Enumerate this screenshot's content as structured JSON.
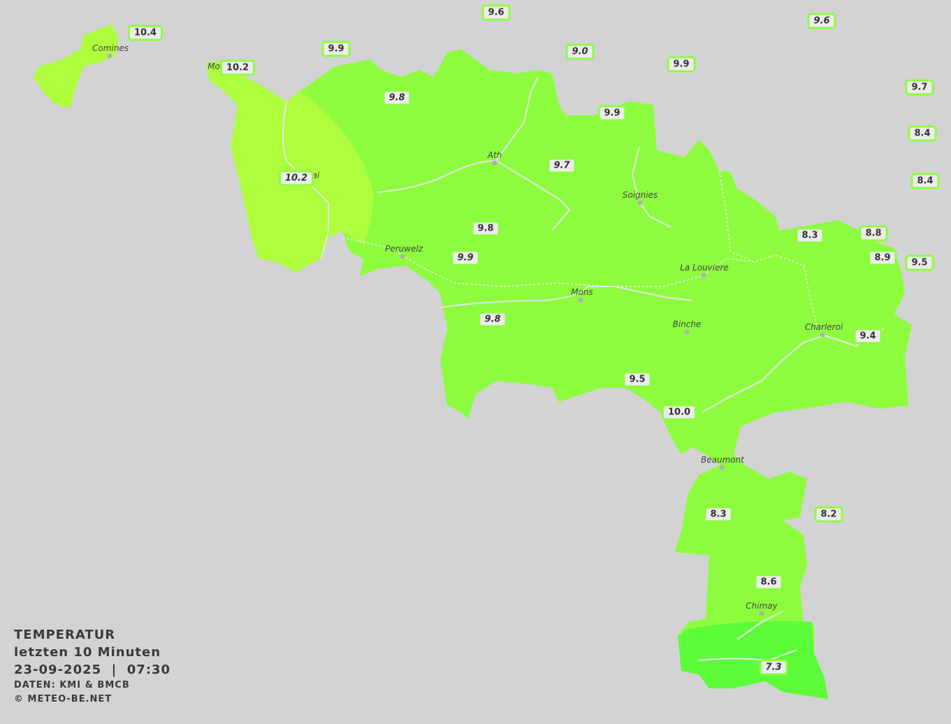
{
  "legend": {
    "title": "TEMPERATUR",
    "period": "letzten 10 Minuten",
    "datetime": "23-09-2025  |  07:30",
    "source": "DATEN: KMI & BMCB",
    "copyright": "© METEO-BE.NET"
  },
  "colors": {
    "background": "#d3d3d3",
    "temp_10": "#aefe3e",
    "temp_9": "#8efc3e",
    "temp_7": "#5cfc3a",
    "label_border": "#8efc3e"
  },
  "cities": [
    "Comines",
    "Mo",
    "ai",
    "Ath",
    "Soignies",
    "Peruwelz",
    "La Louviere",
    "Mons",
    "Binche",
    "Charleroi",
    "Beaumont",
    "Chimay"
  ],
  "readings": [
    "10.4",
    "9.6",
    "9.6",
    "9.9",
    "9.0",
    "9.9",
    "10.2",
    "9.8",
    "9.9",
    "9.7",
    "10.2",
    "9.7",
    "8.4",
    "8.4",
    "9.8",
    "8.3",
    "8.8",
    "9.9",
    "8.9",
    "9.5",
    "9.8",
    "9.4",
    "9.5",
    "10.0",
    "8.3",
    "8.2",
    "8.6",
    "7.3"
  ]
}
